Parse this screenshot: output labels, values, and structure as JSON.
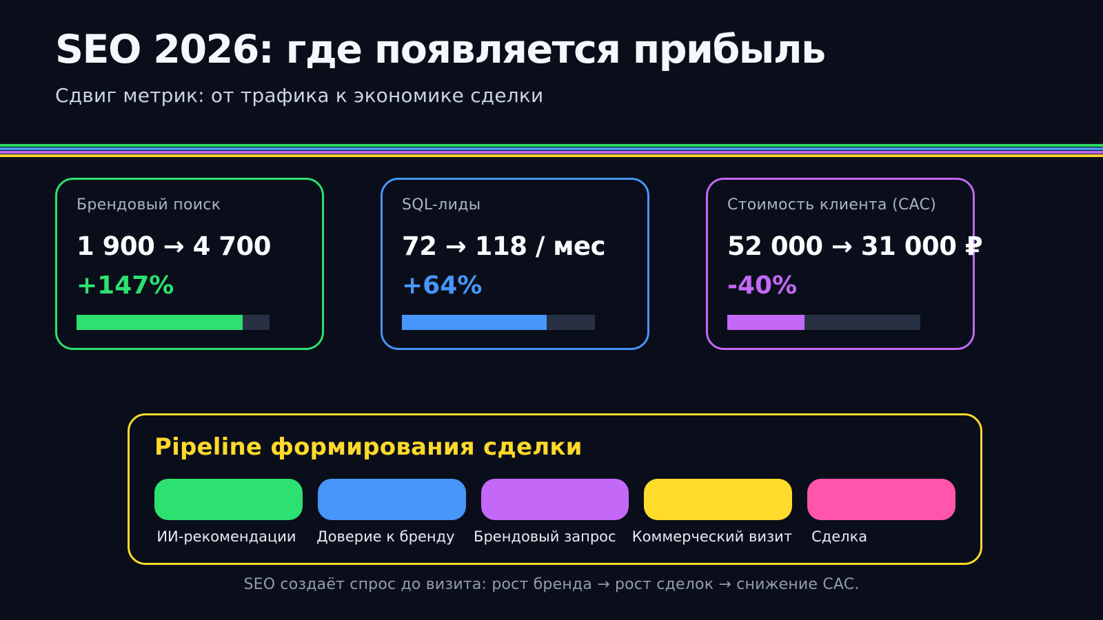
{
  "header": {
    "title": "SEO 2026: где появляется прибыль",
    "subtitle": "Сдвиг метрик: от трафика к экономике сделки"
  },
  "divider_colors": [
    "#2bd964",
    "#4795f5",
    "#b76cf2",
    "#fcd12c"
  ],
  "cards": [
    {
      "label": "Брендовый поиск",
      "value": "1 900 → 4 700",
      "delta": "+147%",
      "accent": "#2ce170",
      "progress": 86
    },
    {
      "label": "SQL-лиды",
      "value": "72 → 118 / мес",
      "delta": "+64%",
      "accent": "#4796fa",
      "progress": 75
    },
    {
      "label": "Стоимость клиента (CAC)",
      "value": "52 000 → 31 000 ₽",
      "delta": "-40%",
      "accent": "#c468f8",
      "progress": 40
    }
  ],
  "pipeline": {
    "title": "Pipeline формирования сделки",
    "accent": "#ffd92b",
    "stages": [
      {
        "label": "ИИ-рекомендации",
        "color": "#2ce170"
      },
      {
        "label": "Доверие к бренду",
        "color": "#4796fa"
      },
      {
        "label": "Брендовый запрос",
        "color": "#c468f8"
      },
      {
        "label": "Коммерческий визит",
        "color": "#ffdc2b"
      },
      {
        "label": "Сделка",
        "color": "#ff55ab"
      }
    ]
  },
  "footer": {
    "note": "SEO создаёт спрос до визита: рост бренда → рост сделок → снижение CAC."
  },
  "chart_data": {
    "type": "table",
    "title": "SEO 2026: где появляется прибыль",
    "subtitle": "Сдвиг метрик: от трафика к экономике сделки",
    "metrics": [
      {
        "label": "Брендовый поиск",
        "before": 1900,
        "after": 4700,
        "change_pct": 147,
        "bar_fill_pct": 86
      },
      {
        "label": "SQL-лиды",
        "before": 72,
        "after": 118,
        "unit": "/ мес",
        "change_pct": 64,
        "bar_fill_pct": 75
      },
      {
        "label": "Стоимость клиента (CAC)",
        "before": 52000,
        "after": 31000,
        "unit": "₽",
        "change_pct": -40,
        "bar_fill_pct": 40
      }
    ],
    "pipeline_stages": [
      "ИИ-рекомендации",
      "Доверие к бренду",
      "Брендовый запрос",
      "Коммерческий визит",
      "Сделка"
    ],
    "note": "SEO создаёт спрос до визита: рост бренда → рост сделок → снижение CAC."
  }
}
